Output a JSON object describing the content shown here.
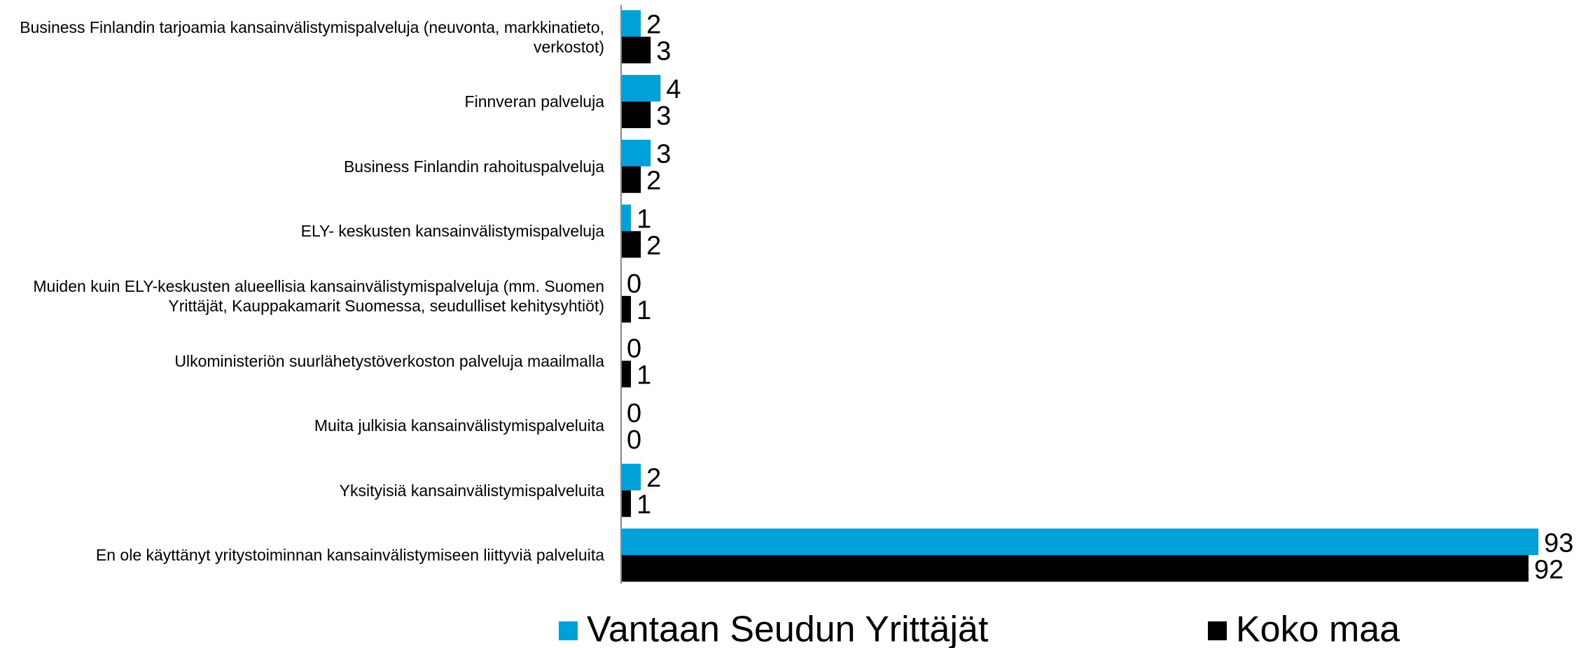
{
  "chart_data": {
    "type": "barh",
    "categories": [
      "Business Finlandin tarjoamia kansainvälistymispalveluja (neuvonta, markkinatieto, verkostot)",
      "Finnveran palveluja",
      "Business Finlandin rahoituspalveluja",
      "ELY- keskusten kansainvälistymispalveluja",
      "Muiden kuin ELY-keskusten alueellisia kansainvälistymispalveluja (mm. Suomen Yrittäjät, Kauppakamarit Suomessa, seudulliset kehitysyhtiöt)",
      "Ulkoministeriön suurlähetystöverkoston palveluja maailmalla",
      "Muita julkisia kansainvälistymispalveluita",
      "Yksityisiä kansainvälistymispalveluita",
      "En ole käyttänyt yritystoiminnan kansainvälistymiseen liittyviä palveluita"
    ],
    "series": [
      {
        "name": "Vantaan Seudun Yrittäjät",
        "color": "#00a0d8",
        "values": [
          2,
          4,
          3,
          1,
          0,
          0,
          0,
          2,
          93
        ]
      },
      {
        "name": "Koko maa",
        "color": "#000000",
        "values": [
          3,
          3,
          2,
          2,
          1,
          1,
          0,
          1,
          92
        ]
      }
    ],
    "legend": "bottom"
  }
}
